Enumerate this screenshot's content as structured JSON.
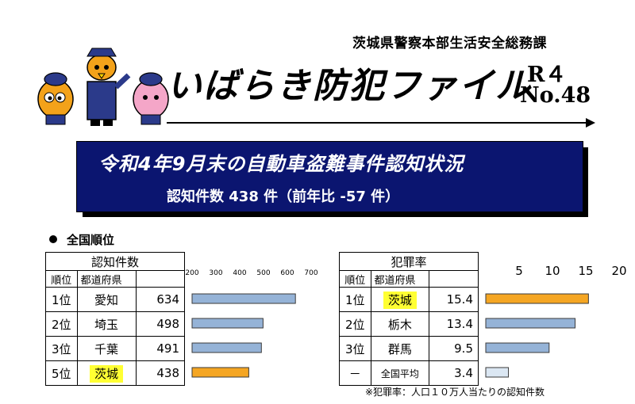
{
  "header": {
    "department": "茨城県警察本部生活安全総務課",
    "title": "いばらき防犯ファイル",
    "issue_year": "R４",
    "issue_no": "No.48"
  },
  "banner": {
    "title": "令和4年9月末の自動車盗難事件認知状況",
    "subtitle": "認知件数 438 件（前年比 -57 件）"
  },
  "section_title": "全国順位",
  "left_table": {
    "caption": "認知件数",
    "col_rank": "順位",
    "col_pref": "都道府県",
    "rows": [
      {
        "rank": "1位",
        "pref": "愛知",
        "value": "634",
        "highlight": false
      },
      {
        "rank": "2位",
        "pref": "埼玉",
        "value": "498",
        "highlight": false
      },
      {
        "rank": "3位",
        "pref": "千葉",
        "value": "491",
        "highlight": false
      },
      {
        "rank": "5位",
        "pref": "茨城",
        "value": "438",
        "highlight": true
      }
    ]
  },
  "right_table": {
    "caption": "犯罪率",
    "col_rank": "順位",
    "col_pref": "都道府県",
    "rows": [
      {
        "rank": "1位",
        "pref": "茨城",
        "value": "15.4",
        "highlight": true
      },
      {
        "rank": "2位",
        "pref": "栃木",
        "value": "13.4",
        "highlight": false
      },
      {
        "rank": "3位",
        "pref": "群馬",
        "value": "9.5",
        "highlight": false
      },
      {
        "rank": "－",
        "pref": "全国平均",
        "value": "3.4",
        "highlight": false
      }
    ]
  },
  "footnote": "※犯罪率：人口１０万人当たりの認知件数",
  "colors": {
    "banner": "#0b1570",
    "bar_normal": "#95b3d7",
    "bar_highlight": "#f5a623",
    "bar_average": "#dbe7f3",
    "highlight_cell": "#ffff33"
  },
  "chart_data": [
    {
      "type": "bar",
      "orientation": "horizontal",
      "categories": [
        "愛知",
        "埼玉",
        "千葉",
        "茨城"
      ],
      "values": [
        634,
        498,
        491,
        438
      ],
      "xlim": [
        200,
        700
      ],
      "ticks": [
        "200",
        "300",
        "400",
        "500",
        "600",
        "700"
      ],
      "title": "",
      "xlabel": "",
      "ylabel": ""
    },
    {
      "type": "bar",
      "orientation": "horizontal",
      "categories": [
        "茨城",
        "栃木",
        "群馬",
        "全国平均"
      ],
      "values": [
        15.4,
        13.4,
        9.5,
        3.4
      ],
      "xlim": [
        0,
        20
      ],
      "ticks": [
        "5",
        "10",
        "15",
        "20"
      ],
      "title": "",
      "xlabel": "",
      "ylabel": ""
    }
  ]
}
